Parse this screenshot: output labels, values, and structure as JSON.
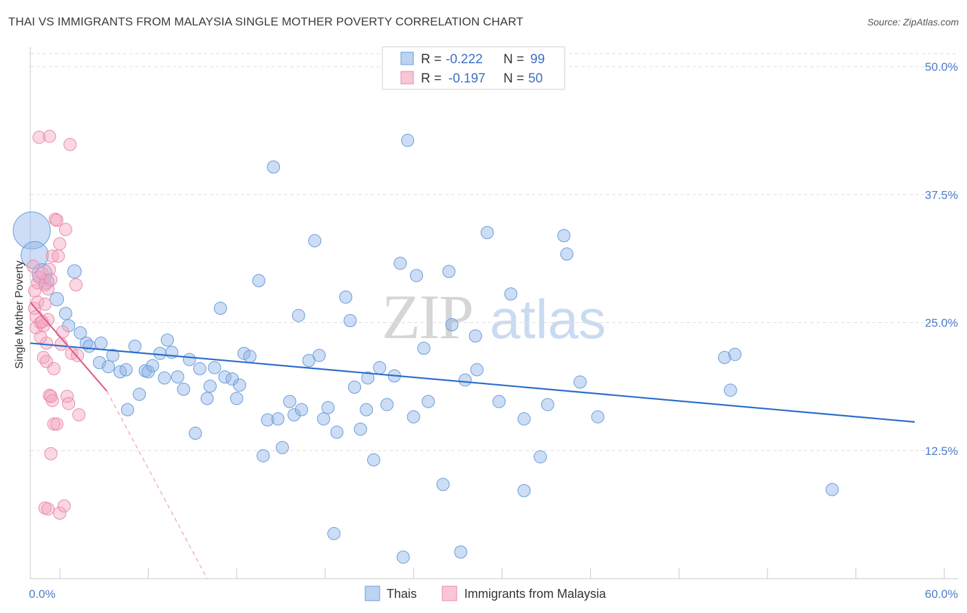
{
  "chart_data": {
    "type": "scatter",
    "title": "THAI VS IMMIGRANTS FROM MALAYSIA SINGLE MOTHER POVERTY CORRELATION CHART",
    "source": "Source: ZipAtlas.com",
    "ylabel": "Single Mother Poverty",
    "xlabel": "",
    "xlim": [
      0,
      60
    ],
    "ylim": [
      0,
      50
    ],
    "x_tick_labels": [
      "0.0%",
      "60.0%"
    ],
    "y_ticks": [
      12.5,
      25.0,
      37.5,
      50.0
    ],
    "y_tick_labels": [
      "12.5%",
      "25.0%",
      "37.5%",
      "50.0%"
    ],
    "grid": true,
    "watermark": "ZIPatlas",
    "legend": {
      "placement": "top-center",
      "entries": [
        {
          "series": "Thais",
          "r_label": "R =",
          "r_value": "-0.222",
          "n_label": "N =",
          "n_value": "99"
        },
        {
          "series": "Immigrants from Malaysia",
          "r_label": "R =",
          "r_value": "-0.197",
          "n_label": "N =",
          "n_value": "50"
        }
      ]
    },
    "series": [
      {
        "name": "Thais",
        "color": "#8db4e8",
        "edge": "#6a9bd8",
        "line_color": "#2a6ccc",
        "trend": {
          "x": [
            0,
            60
          ],
          "y": [
            23.0,
            15.3
          ],
          "dashed_extension": false
        },
        "points": [
          [
            0.1,
            34.0,
            3
          ],
          [
            0.3,
            31.6,
            2.2
          ],
          [
            0.8,
            29.8,
            1.6
          ],
          [
            1.1,
            29.0,
            1.2
          ],
          [
            1.8,
            27.3,
            1.1
          ],
          [
            3.0,
            30.0,
            1.1
          ],
          [
            2.4,
            25.9,
            1.0
          ],
          [
            2.6,
            24.7,
            1.0
          ],
          [
            3.4,
            24.0,
            1.0
          ],
          [
            3.8,
            23.0,
            1.0
          ],
          [
            4.0,
            22.7,
            1.0
          ],
          [
            4.7,
            21.1,
            1.0
          ],
          [
            4.8,
            23.0,
            1.0
          ],
          [
            5.3,
            20.7,
            1.0
          ],
          [
            5.6,
            21.8,
            1.0
          ],
          [
            6.1,
            20.2,
            1.0
          ],
          [
            6.5,
            20.4,
            1.0
          ],
          [
            6.6,
            16.5,
            1.0
          ],
          [
            7.1,
            22.7,
            1.0
          ],
          [
            7.4,
            18.0,
            1.0
          ],
          [
            7.8,
            20.3,
            1.0
          ],
          [
            8.0,
            20.2,
            1.0
          ],
          [
            8.3,
            20.8,
            1.0
          ],
          [
            8.8,
            22.0,
            1.0
          ],
          [
            9.1,
            19.6,
            1.0
          ],
          [
            9.3,
            23.3,
            1.0
          ],
          [
            9.6,
            22.1,
            1.0
          ],
          [
            10.0,
            19.7,
            1.0
          ],
          [
            10.4,
            18.5,
            1.0
          ],
          [
            10.8,
            21.4,
            1.0
          ],
          [
            11.2,
            14.2,
            1.0
          ],
          [
            11.5,
            20.5,
            1.0
          ],
          [
            12.0,
            17.6,
            1.0
          ],
          [
            12.2,
            18.8,
            1.0
          ],
          [
            12.5,
            20.6,
            1.0
          ],
          [
            12.9,
            26.4,
            1.0
          ],
          [
            13.2,
            19.7,
            1.0
          ],
          [
            13.7,
            19.5,
            1.0
          ],
          [
            14.0,
            17.6,
            1.0
          ],
          [
            14.2,
            18.9,
            1.0
          ],
          [
            14.5,
            22.0,
            1.0
          ],
          [
            14.9,
            21.7,
            1.0
          ],
          [
            15.5,
            29.1,
            1.0
          ],
          [
            15.8,
            12.0,
            1.0
          ],
          [
            16.1,
            15.5,
            1.0
          ],
          [
            16.5,
            40.2,
            1.0
          ],
          [
            16.8,
            15.6,
            1.0
          ],
          [
            17.1,
            12.8,
            1.0
          ],
          [
            17.6,
            17.3,
            1.0
          ],
          [
            17.9,
            16.0,
            1.0
          ],
          [
            18.2,
            25.7,
            1.0
          ],
          [
            18.4,
            16.5,
            1.0
          ],
          [
            18.9,
            21.3,
            1.0
          ],
          [
            19.3,
            33.0,
            1.0
          ],
          [
            19.6,
            21.8,
            1.0
          ],
          [
            19.9,
            15.6,
            1.0
          ],
          [
            20.2,
            16.7,
            1.0
          ],
          [
            20.6,
            4.4,
            1.0
          ],
          [
            20.8,
            14.3,
            1.0
          ],
          [
            21.4,
            27.5,
            1.0
          ],
          [
            21.7,
            25.2,
            1.0
          ],
          [
            22.0,
            18.7,
            1.0
          ],
          [
            22.4,
            14.6,
            1.0
          ],
          [
            22.8,
            16.5,
            1.0
          ],
          [
            22.9,
            19.6,
            1.0
          ],
          [
            23.3,
            11.6,
            1.0
          ],
          [
            23.7,
            20.6,
            1.0
          ],
          [
            24.2,
            17.0,
            1.0
          ],
          [
            24.7,
            19.8,
            1.0
          ],
          [
            25.1,
            30.8,
            1.0
          ],
          [
            25.3,
            2.1,
            1.0
          ],
          [
            25.6,
            42.8,
            1.0
          ],
          [
            26.0,
            15.8,
            1.0
          ],
          [
            26.2,
            29.6,
            1.0
          ],
          [
            26.7,
            22.5,
            1.0
          ],
          [
            27.0,
            17.3,
            1.0
          ],
          [
            28.0,
            9.2,
            1.0
          ],
          [
            28.4,
            30.0,
            1.0
          ],
          [
            28.6,
            24.8,
            1.0
          ],
          [
            29.2,
            2.6,
            1.0
          ],
          [
            29.5,
            19.4,
            1.0
          ],
          [
            30.2,
            23.7,
            1.0
          ],
          [
            30.3,
            20.4,
            1.0
          ],
          [
            31.0,
            33.8,
            1.0
          ],
          [
            31.8,
            17.3,
            1.0
          ],
          [
            32.6,
            27.8,
            1.0
          ],
          [
            33.5,
            8.6,
            1.0
          ],
          [
            33.5,
            15.6,
            1.0
          ],
          [
            34.6,
            11.9,
            1.0
          ],
          [
            35.1,
            17.0,
            1.0
          ],
          [
            36.2,
            33.5,
            1.0
          ],
          [
            36.4,
            31.7,
            1.0
          ],
          [
            37.3,
            19.2,
            1.0
          ],
          [
            38.5,
            15.8,
            1.0
          ],
          [
            47.1,
            21.6,
            1.0
          ],
          [
            47.5,
            18.4,
            1.0
          ],
          [
            47.8,
            21.9,
            1.0
          ],
          [
            54.4,
            8.7,
            1.0
          ]
        ]
      },
      {
        "name": "Immigrants from Malaysia",
        "color": "#f4a7c0",
        "edge": "#e88aa9",
        "line_color": "#e05d8c",
        "trend": {
          "x": [
            0,
            5.2
          ],
          "y": [
            27.0,
            18.3
          ],
          "dashed_to": [
            12.0,
            0.0
          ],
          "dashed_extension": true
        },
        "points": [
          [
            0.2,
            30.5,
            1.0
          ],
          [
            0.3,
            28.1,
            1.0
          ],
          [
            0.3,
            26.4,
            1.0
          ],
          [
            0.4,
            24.5,
            1.0
          ],
          [
            0.4,
            25.6,
            1.0
          ],
          [
            0.5,
            28.9,
            1.0
          ],
          [
            0.5,
            27.0,
            1.0
          ],
          [
            0.6,
            43.1,
            1.0
          ],
          [
            0.6,
            29.4,
            1.0
          ],
          [
            0.7,
            25.0,
            1.0
          ],
          [
            0.8,
            29.8,
            1.0
          ],
          [
            0.9,
            21.6,
            1.0
          ],
          [
            0.9,
            24.7,
            1.0
          ],
          [
            1.0,
            28.7,
            1.0
          ],
          [
            1.0,
            26.8,
            1.0
          ],
          [
            1.1,
            23.0,
            1.0
          ],
          [
            1.1,
            21.2,
            1.0
          ],
          [
            1.2,
            28.3,
            1.0
          ],
          [
            1.2,
            25.3,
            1.0
          ],
          [
            1.3,
            17.9,
            1.0
          ],
          [
            1.3,
            43.2,
            1.0
          ],
          [
            1.3,
            30.2,
            1.0
          ],
          [
            1.4,
            29.2,
            1.0
          ],
          [
            1.4,
            12.2,
            1.0
          ],
          [
            1.5,
            17.4,
            1.0
          ],
          [
            1.5,
            31.5,
            1.0
          ],
          [
            1.6,
            20.5,
            1.0
          ],
          [
            1.6,
            15.1,
            1.0
          ],
          [
            1.7,
            35.1,
            1.0
          ],
          [
            1.8,
            15.1,
            1.0
          ],
          [
            1.8,
            35.0,
            1.0
          ],
          [
            1.9,
            31.5,
            1.0
          ],
          [
            2.0,
            32.7,
            1.0
          ],
          [
            2.1,
            22.9,
            1.0
          ],
          [
            2.2,
            24.1,
            1.0
          ],
          [
            2.0,
            6.4,
            1.0
          ],
          [
            2.3,
            7.1,
            1.0
          ],
          [
            2.4,
            34.1,
            1.0
          ],
          [
            2.5,
            17.8,
            1.0
          ],
          [
            2.6,
            17.1,
            1.0
          ],
          [
            2.7,
            42.4,
            1.0
          ],
          [
            2.8,
            22.0,
            1.0
          ],
          [
            3.1,
            28.7,
            1.0
          ],
          [
            3.2,
            21.8,
            1.0
          ],
          [
            3.3,
            16.0,
            1.0
          ],
          [
            1.0,
            6.9,
            1.0
          ],
          [
            1.2,
            6.8,
            1.0
          ],
          [
            0.7,
            23.6,
            1.0
          ],
          [
            0.8,
            25.1,
            1.0
          ],
          [
            1.4,
            17.8,
            1.0
          ]
        ]
      }
    ],
    "bottom_legend": [
      "Thais",
      "Immigrants from Malaysia"
    ]
  }
}
